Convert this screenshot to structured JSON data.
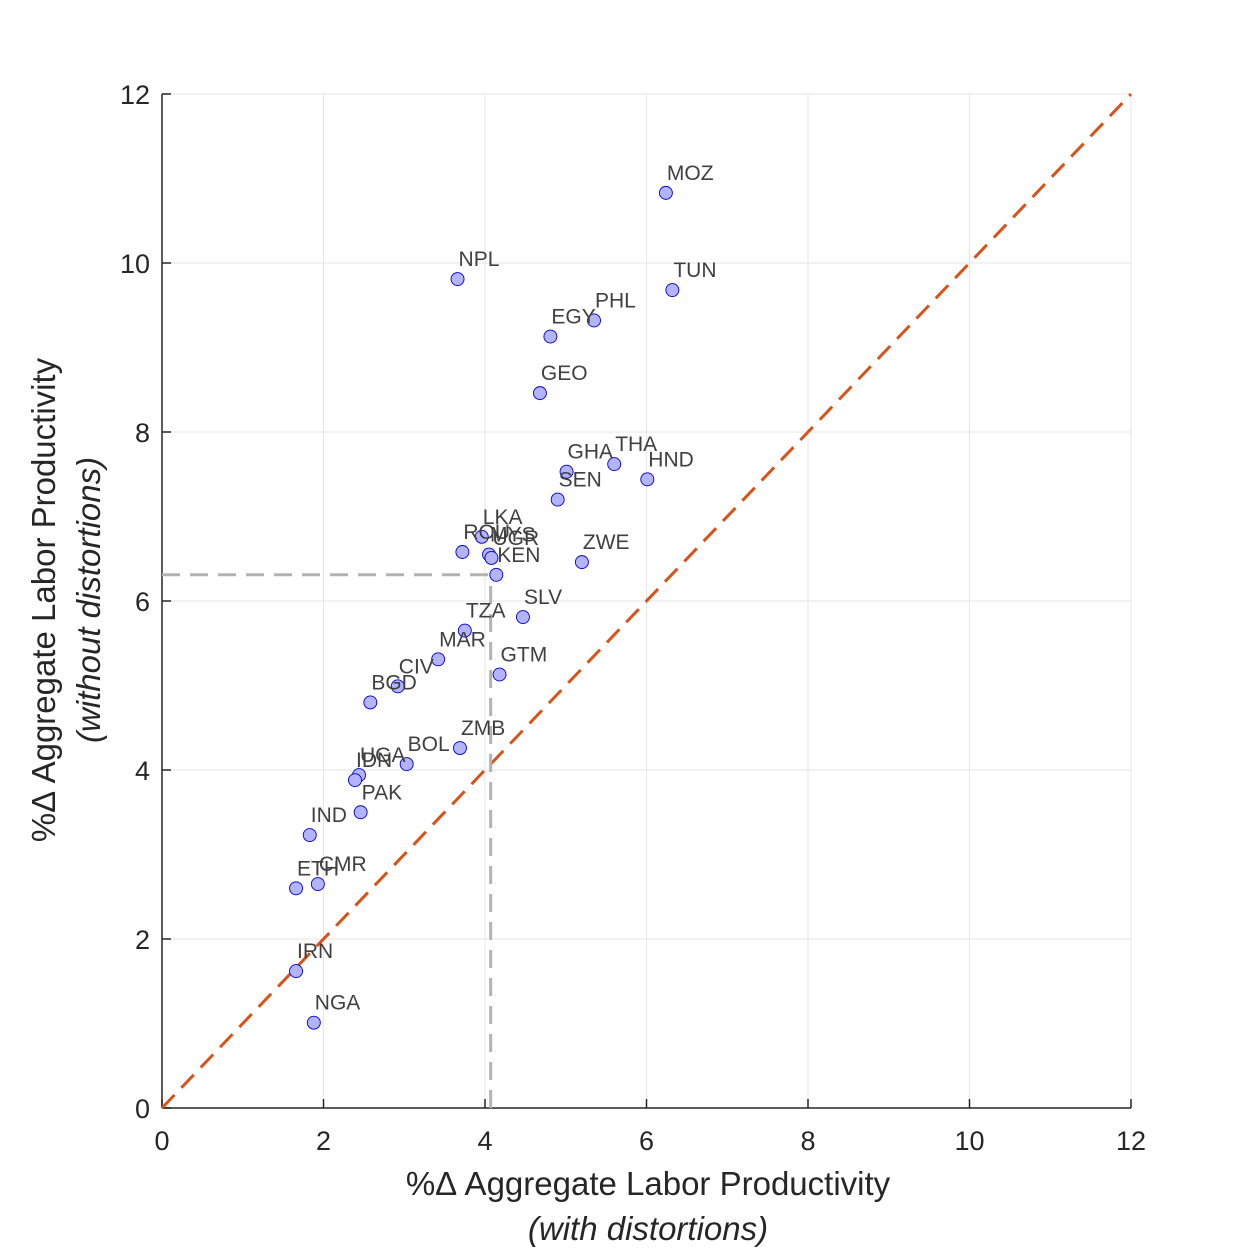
{
  "chart_data": {
    "type": "scatter",
    "xlim": [
      0,
      12
    ],
    "ylim": [
      0,
      12
    ],
    "xticks": [
      0,
      2,
      4,
      6,
      8,
      10,
      12
    ],
    "yticks": [
      0,
      2,
      4,
      6,
      8,
      10,
      12
    ],
    "xlabel": "%Δ Aggregate Labor Productivity",
    "xlabel_sub": "(with distortions)",
    "ylabel": "%Δ Aggregate Labor Productivity",
    "ylabel_sub": "(without distortions)",
    "grid": true,
    "reference_line": {
      "style": "dashed",
      "color": "#d95319",
      "from": [
        0,
        0
      ],
      "to": [
        12,
        12
      ]
    },
    "guide_lines": {
      "style": "dashed",
      "color": "#b3b3b3",
      "x": 4.07,
      "y": 6.31
    },
    "marker_color": "#b3b3ff",
    "marker_edge": "#0000cc",
    "points": [
      {
        "label": "MOZ",
        "x": 6.24,
        "y": 10.83
      },
      {
        "label": "NPL",
        "x": 3.66,
        "y": 9.81
      },
      {
        "label": "TUN",
        "x": 6.32,
        "y": 9.68
      },
      {
        "label": "PHL",
        "x": 5.35,
        "y": 9.32
      },
      {
        "label": "EGY",
        "x": 4.81,
        "y": 9.13
      },
      {
        "label": "GEO",
        "x": 4.68,
        "y": 8.46
      },
      {
        "label": "THA",
        "x": 5.6,
        "y": 7.62
      },
      {
        "label": "GHA",
        "x": 5.01,
        "y": 7.53
      },
      {
        "label": "HND",
        "x": 6.01,
        "y": 7.44
      },
      {
        "label": "SEN",
        "x": 4.9,
        "y": 7.2
      },
      {
        "label": "LKA",
        "x": 3.96,
        "y": 6.76
      },
      {
        "label": "ROU",
        "x": 3.72,
        "y": 6.58
      },
      {
        "label": "MYS",
        "x": 4.05,
        "y": 6.55
      },
      {
        "label": "UGR",
        "x": 4.08,
        "y": 6.51
      },
      {
        "label": "ZWE",
        "x": 5.2,
        "y": 6.46
      },
      {
        "label": "KEN",
        "x": 4.14,
        "y": 6.31
      },
      {
        "label": "SLV",
        "x": 4.47,
        "y": 5.81
      },
      {
        "label": "TZA",
        "x": 3.75,
        "y": 5.65
      },
      {
        "label": "MAR",
        "x": 3.42,
        "y": 5.31
      },
      {
        "label": "GTM",
        "x": 4.18,
        "y": 5.13
      },
      {
        "label": "CIV",
        "x": 2.92,
        "y": 4.99
      },
      {
        "label": "BGD",
        "x": 2.58,
        "y": 4.8
      },
      {
        "label": "ZMB",
        "x": 3.69,
        "y": 4.26
      },
      {
        "label": "BOL",
        "x": 3.03,
        "y": 4.07
      },
      {
        "label": "UGA",
        "x": 2.44,
        "y": 3.94
      },
      {
        "label": "IDN",
        "x": 2.39,
        "y": 3.88
      },
      {
        "label": "PAK",
        "x": 2.46,
        "y": 3.5
      },
      {
        "label": "IND",
        "x": 1.83,
        "y": 3.23
      },
      {
        "label": "CMR",
        "x": 1.93,
        "y": 2.65
      },
      {
        "label": "ETH",
        "x": 1.66,
        "y": 2.6
      },
      {
        "label": "IRN",
        "x": 1.66,
        "y": 1.62
      },
      {
        "label": "NGA",
        "x": 1.88,
        "y": 1.01
      }
    ]
  }
}
